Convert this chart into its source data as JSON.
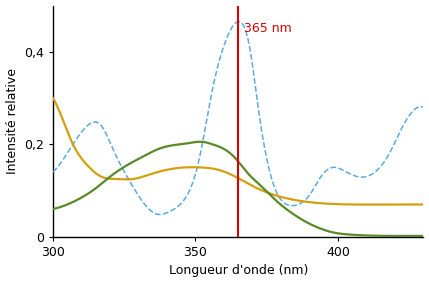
{
  "xlim": [
    300,
    430
  ],
  "ylim": [
    0,
    0.5
  ],
  "yticks": [
    0,
    0.2,
    0.4
  ],
  "ytick_labels": [
    "0",
    "0,2",
    "0,4"
  ],
  "xticks": [
    300,
    350,
    400
  ],
  "xlabel": "Longueur d'onde (nm)",
  "ylabel": "Intensité relative",
  "vline_x": 365,
  "vline_label": "365 nm",
  "vline_color": "#dd0000",
  "blue_color": "#5aaadd",
  "yellow_color": "#d4a010",
  "green_color": "#5a8a28",
  "blue_dashed": {
    "x": [
      300,
      307,
      312,
      317,
      321,
      326,
      331,
      336,
      341,
      346,
      351,
      356,
      361,
      363,
      365,
      367,
      369,
      372,
      377,
      382,
      386,
      390,
      394,
      398,
      403,
      407,
      413,
      418,
      422,
      426,
      430
    ],
    "y": [
      0.14,
      0.2,
      0.24,
      0.24,
      0.19,
      0.13,
      0.08,
      0.05,
      0.055,
      0.08,
      0.16,
      0.32,
      0.43,
      0.455,
      0.465,
      0.455,
      0.41,
      0.28,
      0.12,
      0.07,
      0.07,
      0.09,
      0.13,
      0.15,
      0.14,
      0.13,
      0.14,
      0.18,
      0.23,
      0.27,
      0.28
    ]
  },
  "yellow_solid": {
    "x": [
      300,
      303,
      307,
      312,
      317,
      322,
      328,
      334,
      340,
      346,
      352,
      358,
      364,
      370,
      378,
      390,
      405,
      420,
      430
    ],
    "y": [
      0.3,
      0.26,
      0.2,
      0.155,
      0.13,
      0.125,
      0.125,
      0.135,
      0.145,
      0.15,
      0.15,
      0.145,
      0.13,
      0.11,
      0.09,
      0.075,
      0.07,
      0.07,
      0.07
    ]
  },
  "green_solid": {
    "x": [
      300,
      305,
      310,
      315,
      320,
      326,
      332,
      337,
      342,
      347,
      350,
      353,
      356,
      360,
      364,
      368,
      373,
      378,
      383,
      388,
      393,
      398,
      404,
      410,
      420,
      430
    ],
    "y": [
      0.06,
      0.07,
      0.085,
      0.105,
      0.13,
      0.155,
      0.175,
      0.19,
      0.198,
      0.202,
      0.205,
      0.205,
      0.2,
      0.19,
      0.17,
      0.14,
      0.11,
      0.08,
      0.055,
      0.035,
      0.02,
      0.01,
      0.005,
      0.003,
      0.002,
      0.002
    ]
  }
}
